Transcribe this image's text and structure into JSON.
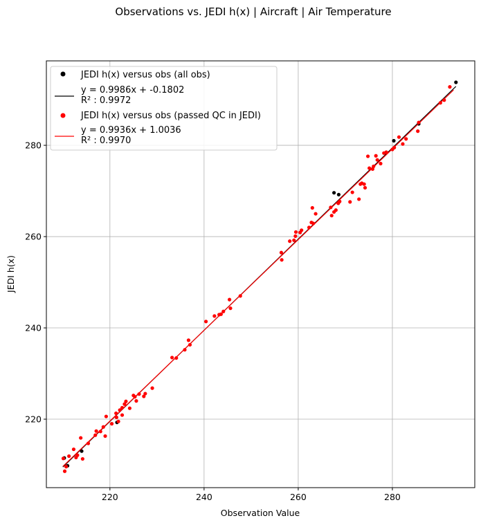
{
  "chart_data": {
    "type": "scatter",
    "title": "Observations vs. JEDI h(x) | Aircraft | Air Temperature",
    "xlabel": "Observation Value",
    "ylabel": "JEDI h(x)",
    "xlim": [
      206.5,
      297.5
    ],
    "ylim": [
      205.0,
      298.5
    ],
    "xticks": [
      220,
      240,
      260,
      280
    ],
    "yticks": [
      220,
      240,
      260,
      280
    ],
    "grid": true,
    "legend_position": "top-left",
    "series": [
      {
        "name": "JEDI h(x) versus obs (all obs)",
        "type": "scatter",
        "color": "#000000",
        "x": [
          210.3,
          211.0,
          214.0,
          221.5,
          267.6,
          268.6,
          280.3,
          285.6,
          293.5
        ],
        "y": [
          211.5,
          209.8,
          213.0,
          219.3,
          269.6,
          269.2,
          281.0,
          284.7,
          293.8
        ]
      },
      {
        "name": "y = 0.9986x + -0.1802\nR² : 0.9972",
        "type": "line",
        "color": "#000000",
        "x": [
          210.0,
          293.5
        ],
        "y": [
          209.52,
          292.91
        ]
      },
      {
        "name": "JEDI h(x) versus obs (passed QC in JEDI)",
        "type": "scatter",
        "color": "#ff0000",
        "x": [
          210.1,
          210.4,
          210.7,
          211.3,
          212.3,
          212.8,
          213.1,
          213.8,
          214.2,
          215.4,
          216.9,
          217.1,
          218.0,
          218.6,
          219.0,
          219.2,
          220.4,
          221.3,
          221.4,
          221.8,
          222.1,
          222.6,
          222.6,
          223.1,
          223.4,
          224.2,
          225.0,
          225.3,
          225.6,
          226.2,
          227.2,
          227.5,
          229.0,
          233.2,
          234.1,
          235.9,
          236.7,
          237.0,
          240.4,
          242.2,
          243.2,
          243.6,
          244.1,
          245.4,
          245.6,
          247.7,
          256.4,
          256.5,
          258.2,
          259.1,
          259.4,
          259.5,
          260.4,
          260.7,
          262.3,
          262.8,
          263.0,
          263.2,
          263.7,
          266.9,
          267.1,
          267.6,
          268.0,
          268.5,
          268.8,
          271.0,
          271.5,
          272.9,
          273.2,
          273.5,
          274.0,
          274.2,
          274.8,
          275.1,
          275.8,
          276.0,
          276.5,
          276.8,
          277.5,
          278.2,
          278.7,
          280.0,
          280.4,
          281.4,
          282.2,
          282.9,
          285.4,
          285.6,
          290.2,
          291.0,
          292.2
        ],
        "y": [
          211.4,
          208.6,
          209.6,
          211.9,
          213.4,
          211.6,
          212.1,
          215.9,
          211.3,
          214.7,
          216.5,
          217.4,
          217.3,
          218.3,
          216.3,
          220.6,
          219.0,
          221.3,
          220.4,
          219.5,
          222.0,
          222.5,
          220.9,
          223.3,
          223.9,
          222.4,
          225.2,
          224.9,
          224.0,
          225.5,
          225.0,
          225.6,
          226.8,
          233.5,
          233.4,
          235.2,
          237.3,
          236.3,
          241.4,
          242.6,
          242.9,
          243.0,
          243.6,
          246.2,
          244.3,
          247.0,
          256.5,
          254.9,
          259.0,
          259.2,
          260.1,
          261.0,
          260.9,
          261.4,
          262.0,
          263.1,
          266.3,
          262.9,
          265.0,
          266.4,
          264.6,
          265.4,
          265.8,
          267.3,
          267.7,
          267.6,
          269.7,
          268.2,
          271.5,
          271.7,
          271.5,
          270.7,
          277.6,
          275.0,
          274.8,
          275.4,
          277.7,
          276.8,
          276.0,
          278.3,
          278.5,
          279.1,
          279.5,
          281.8,
          280.3,
          281.4,
          283.1,
          285.0,
          289.3,
          289.9,
          292.8
        ]
      },
      {
        "name": "y = 0.9936x + 1.0036\nR² : 0.9970",
        "type": "line",
        "color": "#ff0000",
        "x": [
          210.0,
          293.0
        ],
        "y": [
          209.66,
          292.13
        ]
      }
    ]
  }
}
